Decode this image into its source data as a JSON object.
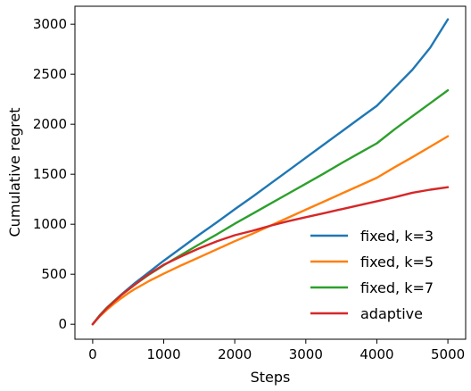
{
  "chart_data": {
    "type": "line",
    "title": "",
    "xlabel": "Steps",
    "ylabel": "Cumulative regret",
    "xlim": [
      -250,
      5250
    ],
    "ylim": [
      -150,
      3180
    ],
    "xticks": [
      0,
      1000,
      2000,
      3000,
      4000,
      5000
    ],
    "yticks": [
      0,
      500,
      1000,
      1500,
      2000,
      2500,
      3000
    ],
    "grid": false,
    "legend_position": "lower-right",
    "series": [
      {
        "name": "fixed, k=3",
        "color": "#1f77b4",
        "x": [
          0,
          100,
          200,
          300,
          400,
          500,
          600,
          700,
          800,
          900,
          1000,
          1250,
          1500,
          1750,
          2000,
          2250,
          2500,
          2750,
          3000,
          3250,
          3500,
          3750,
          4000,
          4250,
          4500,
          4750,
          5000
        ],
        "y": [
          0,
          90,
          165,
          230,
          295,
          355,
          415,
          470,
          525,
          580,
          635,
          765,
          895,
          1020,
          1150,
          1275,
          1405,
          1535,
          1665,
          1795,
          1925,
          2055,
          2185,
          2365,
          2545,
          2765,
          3050
        ]
      },
      {
        "name": "fixed, k=5",
        "color": "#ff7f0e",
        "x": [
          0,
          100,
          200,
          300,
          400,
          500,
          600,
          700,
          800,
          900,
          1000,
          1250,
          1500,
          1750,
          2000,
          2250,
          2500,
          2750,
          3000,
          3250,
          3500,
          3750,
          4000,
          4250,
          4500,
          4750,
          5000
        ],
        "y": [
          0,
          80,
          145,
          205,
          260,
          310,
          355,
          395,
          435,
          470,
          505,
          590,
          670,
          750,
          830,
          905,
          985,
          1065,
          1145,
          1225,
          1305,
          1385,
          1465,
          1570,
          1670,
          1775,
          1880
        ]
      },
      {
        "name": "fixed, k=7",
        "color": "#2ca02c",
        "x": [
          0,
          100,
          200,
          300,
          400,
          500,
          600,
          700,
          800,
          900,
          1000,
          1250,
          1500,
          1750,
          2000,
          2250,
          2500,
          2750,
          3000,
          3250,
          3500,
          3750,
          4000,
          4250,
          4500,
          4750,
          5000
        ],
        "y": [
          0,
          90,
          165,
          230,
          290,
          345,
          400,
          450,
          500,
          545,
          590,
          695,
          800,
          900,
          1005,
          1105,
          1205,
          1305,
          1405,
          1505,
          1610,
          1710,
          1810,
          1950,
          2080,
          2210,
          2340
        ]
      },
      {
        "name": "adaptive",
        "color": "#d62728",
        "x": [
          0,
          100,
          200,
          300,
          400,
          500,
          600,
          700,
          800,
          900,
          1000,
          1250,
          1500,
          1750,
          2000,
          2250,
          2500,
          2750,
          3000,
          3250,
          3500,
          3750,
          4000,
          4250,
          4500,
          4750,
          5000
        ],
        "y": [
          0,
          85,
          160,
          225,
          290,
          345,
          400,
          455,
          505,
          550,
          595,
          680,
          760,
          830,
          890,
          935,
          985,
          1030,
          1070,
          1110,
          1150,
          1190,
          1230,
          1270,
          1315,
          1345,
          1370
        ]
      }
    ]
  }
}
